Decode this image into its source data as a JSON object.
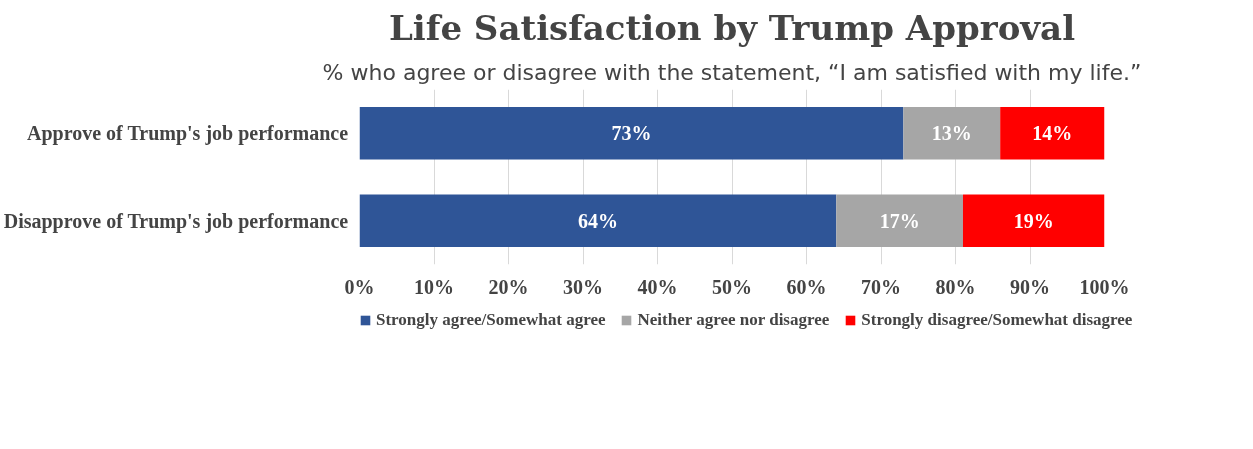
{
  "chart_data": {
    "type": "bar",
    "orientation": "horizontal",
    "stacked": true,
    "title": "Life Satisfaction by Trump Approval",
    "subtitle": "% who agree or disagree with the statement, “I am satisfied with my life.”",
    "categories": [
      "Approve of Trump's job performance",
      "Disapprove of Trump's job performance"
    ],
    "series": [
      {
        "name": "Strongly agree/Somewhat agree",
        "color": "#2f5597",
        "values": [
          73,
          64
        ],
        "value_labels": [
          "73%",
          "64%"
        ]
      },
      {
        "name": "Neither agree nor disagree",
        "color": "#a6a6a6",
        "values": [
          13,
          17
        ],
        "value_labels": [
          "13%",
          "17%"
        ]
      },
      {
        "name": "Strongly disagree/Somewhat disagree",
        "color": "#ff0000",
        "values": [
          14,
          19
        ],
        "value_labels": [
          "14%",
          "19%"
        ]
      }
    ],
    "xlim": [
      0,
      100
    ],
    "xticks": [
      {
        "value": 0,
        "label": "0%"
      },
      {
        "value": 10,
        "label": "10%"
      },
      {
        "value": 20,
        "label": "20%"
      },
      {
        "value": 30,
        "label": "30%"
      },
      {
        "value": 40,
        "label": "40%"
      },
      {
        "value": 50,
        "label": "50%"
      },
      {
        "value": 60,
        "label": "60%"
      },
      {
        "value": 70,
        "label": "70%"
      },
      {
        "value": 80,
        "label": "80%"
      },
      {
        "value": 90,
        "label": "90%"
      },
      {
        "value": 100,
        "label": "100%"
      }
    ],
    "grid": "x",
    "legend": "bottom"
  }
}
